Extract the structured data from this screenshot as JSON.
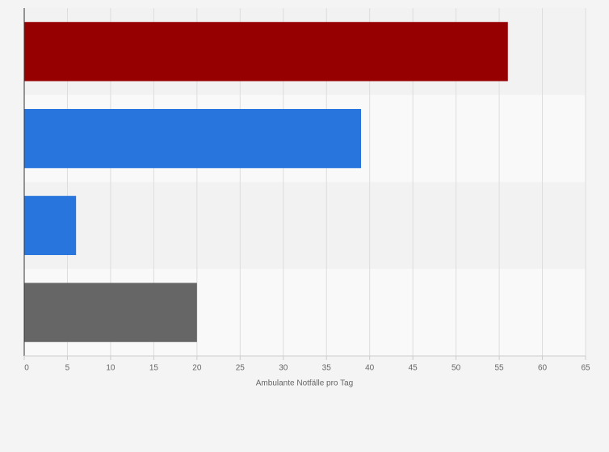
{
  "chart_data": {
    "type": "bar",
    "orientation": "horizontal",
    "categories": [
      null,
      null,
      null,
      null
    ],
    "values": [
      56,
      39,
      6,
      20
    ],
    "colors": [
      "#960000",
      "#2876dd",
      "#2876dd",
      "#666666"
    ],
    "x_label": "Ambulante Notfälle pro Tag",
    "xlim": [
      0,
      65
    ],
    "xticks": [
      0,
      5,
      10,
      15,
      20,
      25,
      30,
      35,
      40,
      45,
      50,
      55,
      60,
      65
    ],
    "grid": true
  }
}
